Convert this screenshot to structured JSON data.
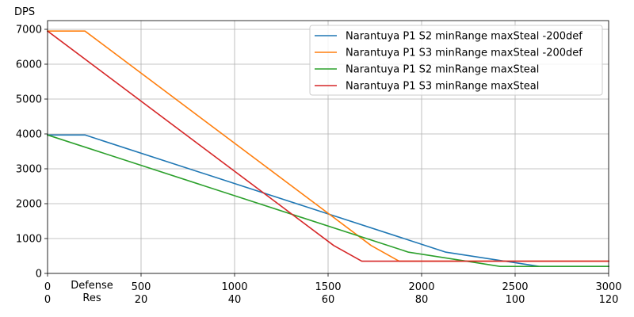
{
  "chart_data": {
    "type": "line",
    "ylabel": "DPS",
    "x_tick_labels_primary": [
      "0",
      "500",
      "1000",
      "1500",
      "2000",
      "2500",
      "3000"
    ],
    "x_tick_labels_secondary": [
      "0",
      "20",
      "40",
      "60",
      "80",
      "100",
      "120"
    ],
    "x_axis_label_line1": "Defense",
    "x_axis_label_line2": "Res",
    "y_tick_labels": [
      "0",
      "1000",
      "2000",
      "3000",
      "4000",
      "5000",
      "6000",
      "7000"
    ],
    "xlim": [
      0,
      3000
    ],
    "ylim": [
      0,
      7300
    ],
    "grid": true,
    "legend_position": "top-right",
    "series": [
      {
        "name": "Narantuya P1 S2 minRange maxSteal -200def",
        "color": "#1f77b4",
        "points": [
          [
            0,
            3970
          ],
          [
            200,
            3970
          ],
          [
            2130,
            610
          ],
          [
            2630,
            200
          ],
          [
            3000,
            200
          ]
        ]
      },
      {
        "name": "Narantuya P1 S3 minRange maxSteal -200def",
        "color": "#ff7f0e",
        "points": [
          [
            0,
            6950
          ],
          [
            200,
            6950
          ],
          [
            1730,
            800
          ],
          [
            1880,
            350
          ],
          [
            3000,
            350
          ]
        ]
      },
      {
        "name": "Narantuya P1 S2 minRange maxSteal",
        "color": "#2ca02c",
        "points": [
          [
            0,
            3970
          ],
          [
            1930,
            610
          ],
          [
            2420,
            200
          ],
          [
            3000,
            200
          ]
        ]
      },
      {
        "name": "Narantuya P1 S3 minRange maxSteal",
        "color": "#d62728",
        "points": [
          [
            0,
            6950
          ],
          [
            1530,
            800
          ],
          [
            1680,
            350
          ],
          [
            3000,
            350
          ]
        ]
      }
    ]
  }
}
